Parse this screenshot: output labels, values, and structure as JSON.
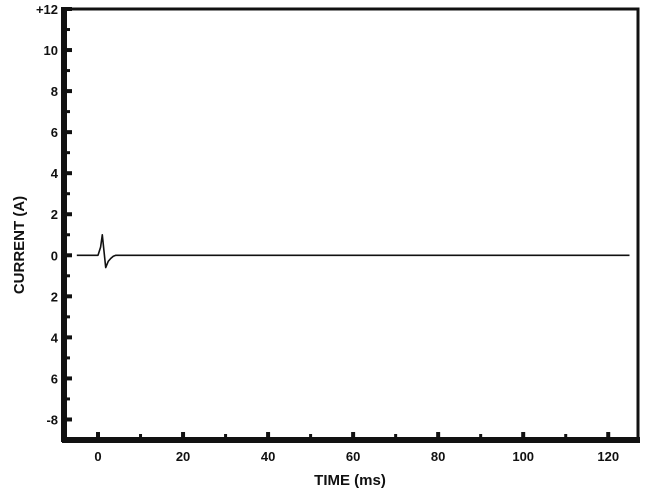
{
  "chart_data": {
    "type": "line",
    "xlabel": "TIME (ms)",
    "ylabel": "CURRENT (A)",
    "xlim": [
      -8,
      127
    ],
    "ylim": [
      -9,
      12
    ],
    "x_ticks": [
      0,
      20,
      40,
      60,
      80,
      100,
      120
    ],
    "x_tick_labels": [
      "0",
      "20",
      "40",
      "60",
      "80",
      "100",
      "120"
    ],
    "y_ticks": [
      12,
      10,
      8,
      6,
      4,
      2,
      0,
      -2,
      -4,
      -6,
      -8
    ],
    "y_tick_labels": [
      "+12",
      "10",
      "8",
      "6",
      "4",
      "2",
      "0",
      "2",
      "4",
      "6",
      "-8"
    ],
    "grid": false,
    "series": [
      {
        "color": "#111111",
        "x": [
          -5,
          -2,
          -1,
          0,
          0.6,
          1.0,
          1.4,
          1.8,
          2.4,
          3.0,
          3.6,
          4.2,
          5.0,
          6.0,
          8.0,
          20,
          40,
          60,
          80,
          100,
          120,
          125
        ],
        "y": [
          0,
          0,
          0,
          0,
          0.4,
          1.0,
          0.2,
          -0.6,
          -0.3,
          -0.15,
          -0.05,
          0,
          0,
          0,
          0,
          0,
          0,
          0,
          0,
          0,
          0,
          0
        ]
      }
    ]
  }
}
